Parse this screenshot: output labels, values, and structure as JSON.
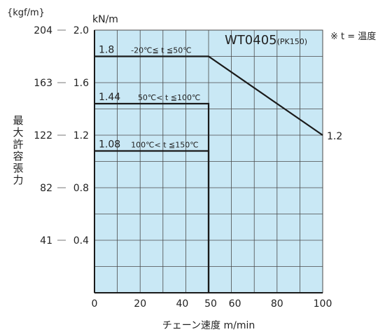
{
  "chart_data": {
    "type": "line",
    "title": "WT0405",
    "title_suffix": "(PK150)",
    "note": "※ t = 温度",
    "xlabel": "チェーン速度  m/min",
    "ylabel": "最大許容張力",
    "y_unit_primary": "kN/m",
    "y_unit_secondary": "{kgf/m}",
    "xlim": [
      0,
      100
    ],
    "ylim": [
      0,
      2.0
    ],
    "x_ticks": [
      "0",
      "20",
      "40",
      "50",
      "60",
      "80",
      "100"
    ],
    "x_tick_values": [
      0,
      20,
      40,
      50,
      60,
      80,
      100
    ],
    "y_ticks": [
      "0.4",
      "0.8",
      "1.2",
      "1.6",
      "2.0"
    ],
    "y_tick_values": [
      0.4,
      0.8,
      1.2,
      1.6,
      2.0
    ],
    "y2_ticks": [
      "41",
      "82",
      "122",
      "163",
      "204"
    ],
    "grid": true,
    "series": [
      {
        "name": "-20℃≦ t ≦50℃",
        "value_label": "1.8",
        "x": [
          0,
          50,
          100
        ],
        "y": [
          1.8,
          1.8,
          1.2
        ],
        "end_label": "1.2"
      },
      {
        "name": "50℃< t ≦100℃",
        "value_label": "1.44",
        "x": [
          0,
          50,
          50
        ],
        "y": [
          1.44,
          1.44,
          0
        ]
      },
      {
        "name": "100℃< t ≦150℃",
        "value_label": "1.08",
        "x": [
          0,
          50,
          50
        ],
        "y": [
          1.08,
          1.08,
          0
        ]
      }
    ],
    "colors": {
      "background": "#c9e8f5",
      "grid": "#4a4a4a",
      "line": "#1a1a1a"
    }
  }
}
